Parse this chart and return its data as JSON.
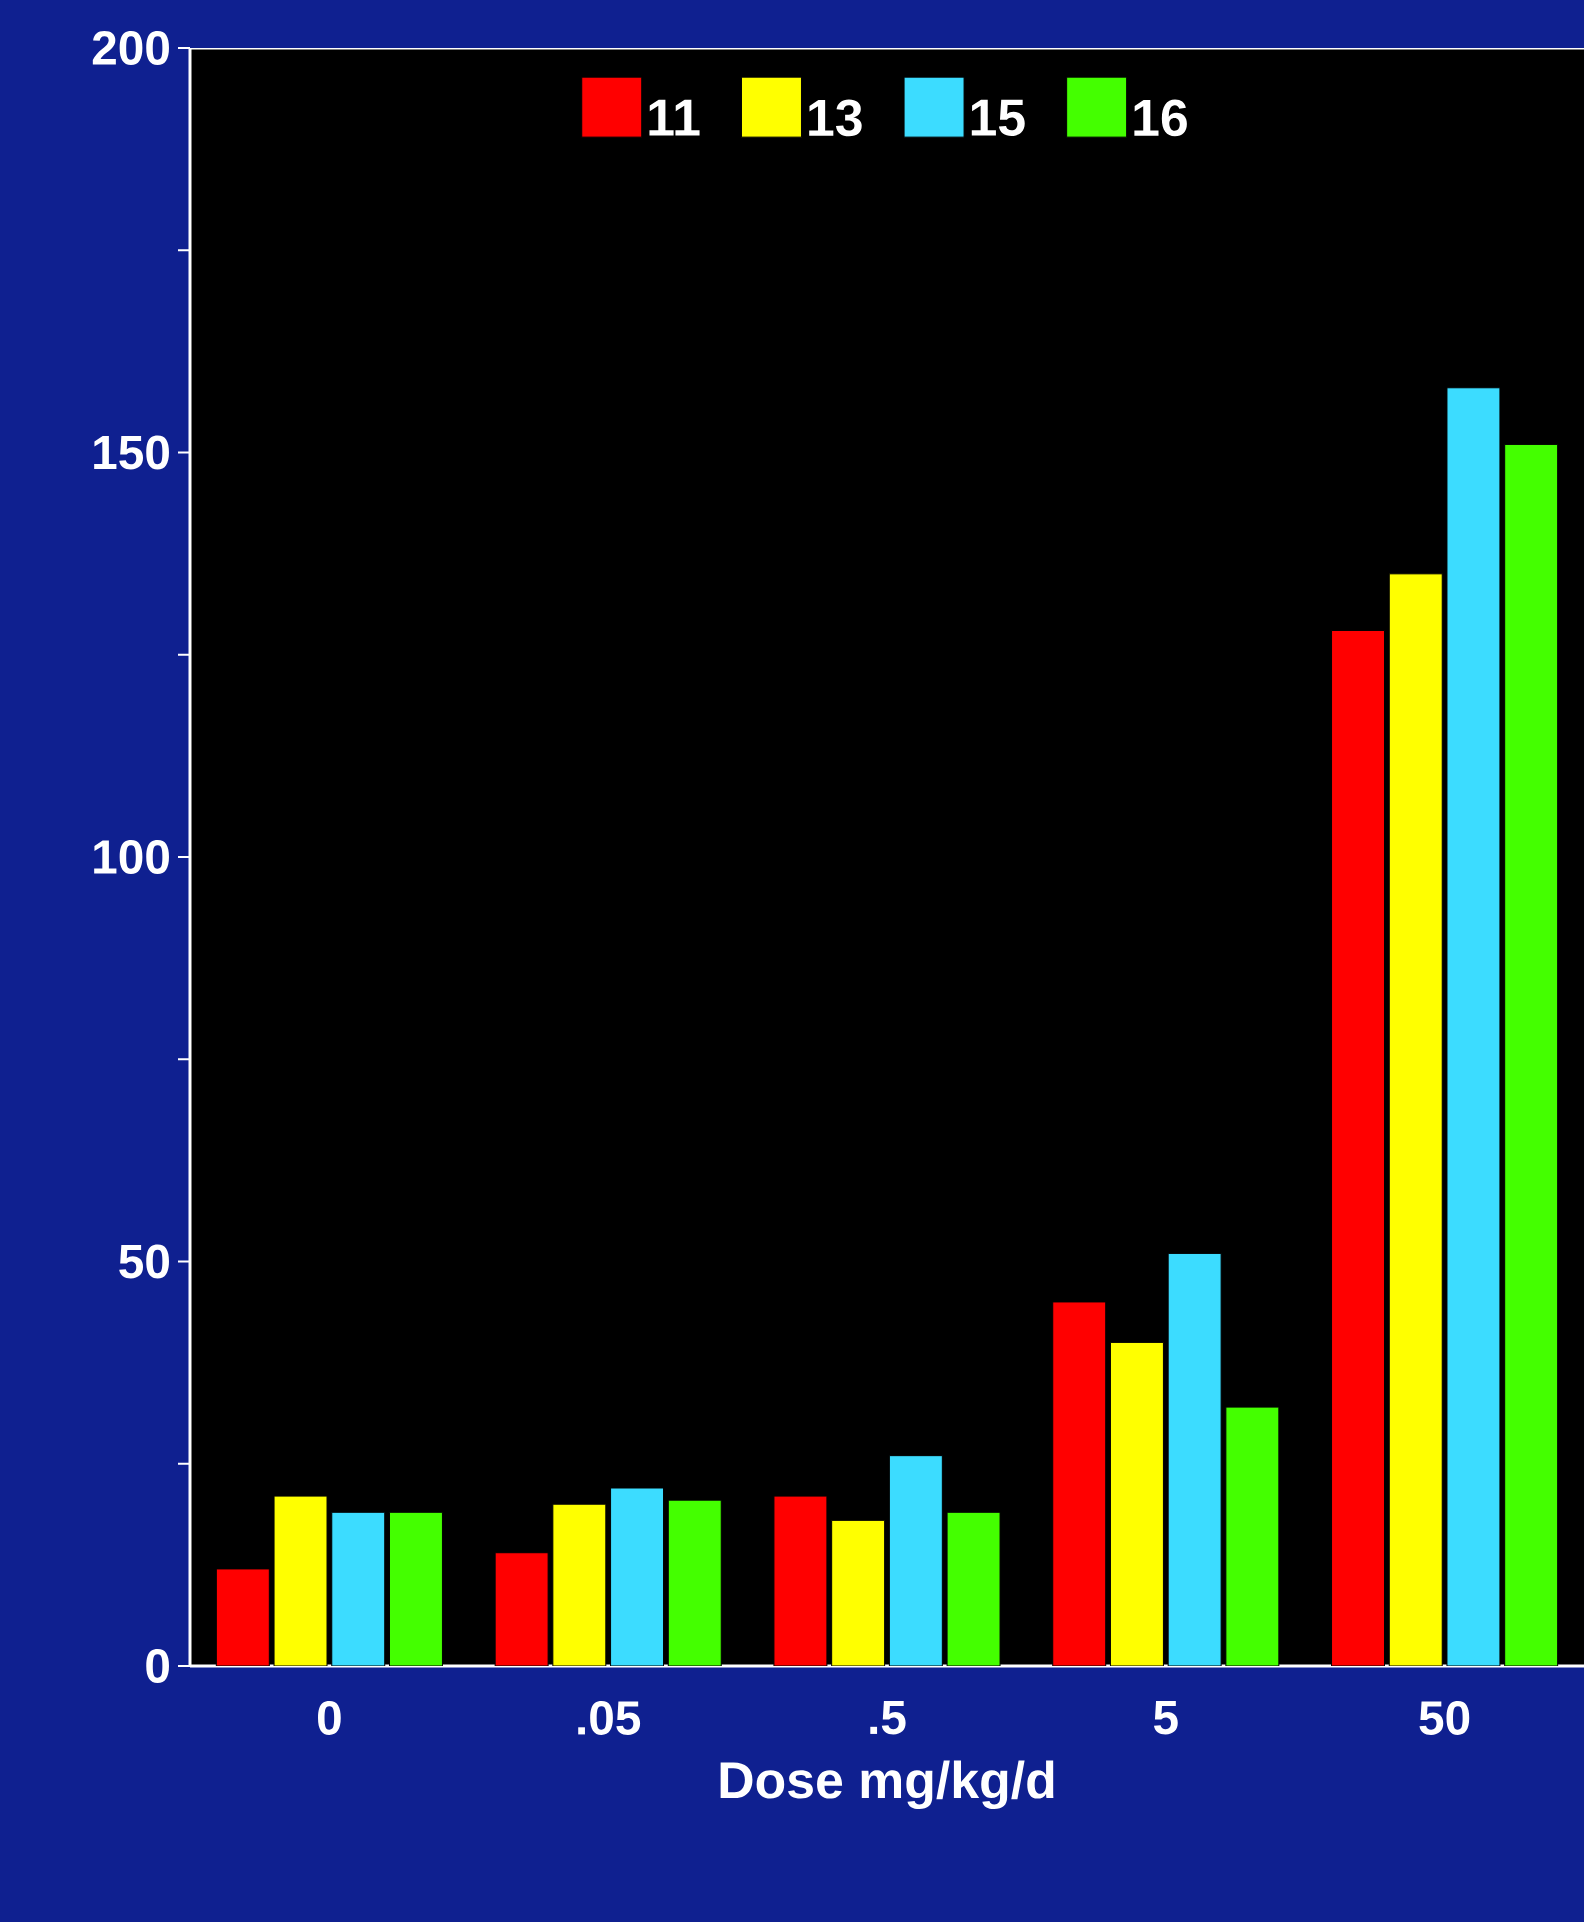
{
  "chart_data": {
    "type": "bar",
    "xlabel": "Dose mg/kg/d",
    "categories": [
      "0",
      ".05",
      ".5",
      "5",
      "50"
    ],
    "series": [
      {
        "name": "11",
        "color": "#ff0000",
        "values": [
          12,
          14,
          21,
          45,
          128
        ]
      },
      {
        "name": "13",
        "color": "#ffff00",
        "values": [
          21,
          20,
          18,
          40,
          135
        ]
      },
      {
        "name": "15",
        "color": "#3cdcff",
        "values": [
          19,
          22,
          26,
          51,
          158
        ]
      },
      {
        "name": "16",
        "color": "#44ff00",
        "values": [
          19,
          20.5,
          19,
          32,
          151
        ]
      }
    ],
    "ylim": [
      0,
      200
    ],
    "yticks": [
      0,
      {
        "value": 25,
        "label": null
      },
      50,
      {
        "value": 75,
        "label": null
      },
      100,
      {
        "value": 125,
        "label": null
      },
      150,
      {
        "value": 175,
        "label": null
      },
      200
    ],
    "legend": "top",
    "grid": false
  }
}
